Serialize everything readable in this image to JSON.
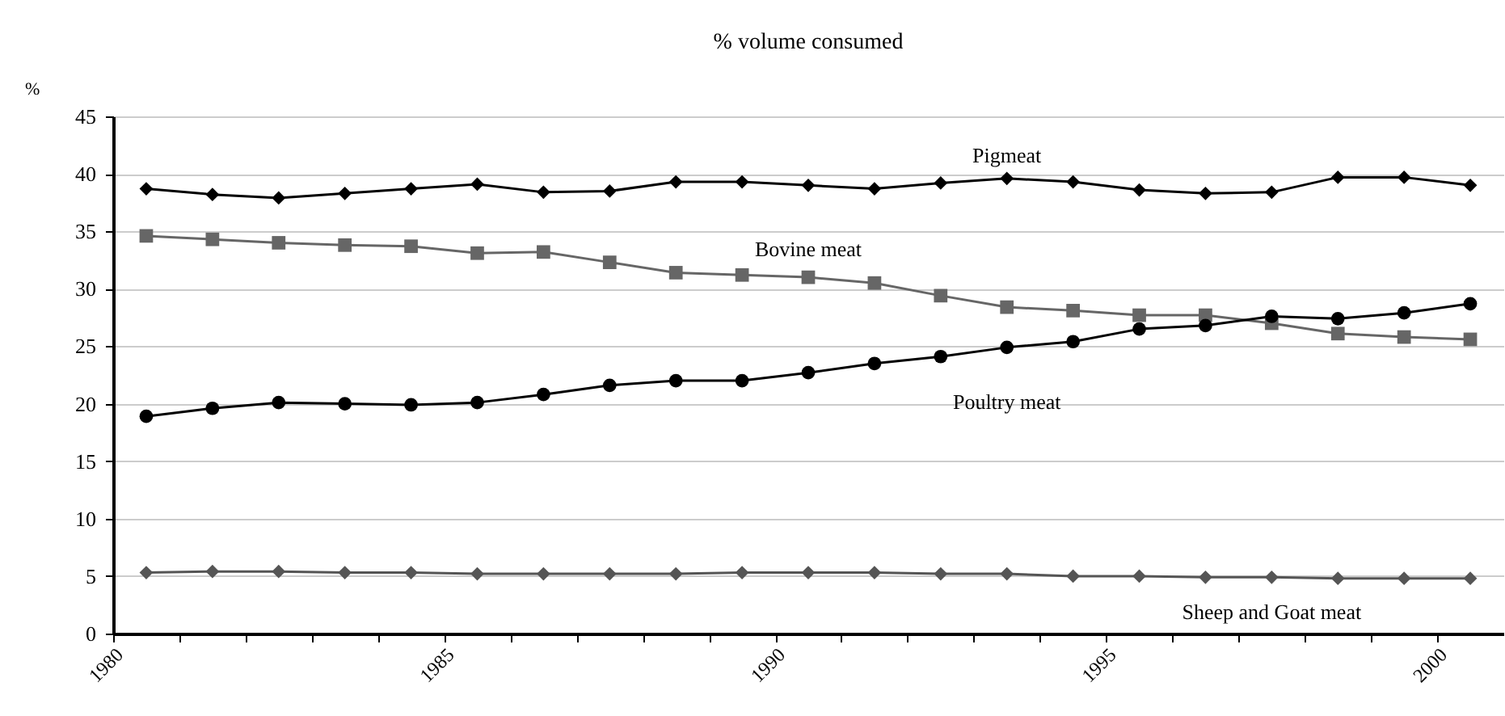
{
  "chart_data": {
    "type": "line",
    "title": "% volume consumed",
    "ylabel": "%",
    "x": [
      1980.5,
      1981.5,
      1982.5,
      1983.5,
      1984.5,
      1985.5,
      1986.5,
      1987.5,
      1988.5,
      1989.5,
      1990.5,
      1991.5,
      1992.5,
      1993.5,
      1994.5,
      1995.5,
      1996.5,
      1997.5,
      1998.5,
      1999.5,
      2000.5
    ],
    "series": [
      {
        "name": "Pigmeat",
        "color": "#000000",
        "marker": "diamond",
        "values": [
          38.7,
          38.2,
          37.9,
          38.3,
          38.7,
          39.1,
          38.4,
          38.5,
          39.3,
          39.3,
          39.0,
          38.7,
          39.2,
          39.6,
          39.3,
          38.6,
          38.3,
          38.4,
          39.7,
          39.7,
          39.0
        ]
      },
      {
        "name": "Bovine meat",
        "color": "#666666",
        "marker": "square",
        "values": [
          34.6,
          34.3,
          34.0,
          33.8,
          33.7,
          33.1,
          33.2,
          32.3,
          31.4,
          31.2,
          31.0,
          30.5,
          29.4,
          28.4,
          28.1,
          27.7,
          27.7,
          27.0,
          26.1,
          25.8,
          25.6
        ]
      },
      {
        "name": "Poultry meat",
        "color": "#000000",
        "marker": "circle",
        "values": [
          18.9,
          19.6,
          20.1,
          20.0,
          19.9,
          20.1,
          20.8,
          21.6,
          22.0,
          22.0,
          22.7,
          23.5,
          24.1,
          24.9,
          25.4,
          26.5,
          26.8,
          27.6,
          27.4,
          27.9,
          28.7
        ]
      },
      {
        "name": "Sheep and Goat meat",
        "color": "#555555",
        "marker": "diamond",
        "values": [
          5.3,
          5.4,
          5.4,
          5.3,
          5.3,
          5.2,
          5.2,
          5.2,
          5.2,
          5.3,
          5.3,
          5.3,
          5.2,
          5.2,
          5.0,
          5.0,
          4.9,
          4.9,
          4.8,
          4.8,
          4.8
        ]
      }
    ],
    "xlim": [
      1980,
      2001
    ],
    "xticks": [
      1980,
      {
        "value": 1981,
        "label": null
      },
      {
        "value": 1982,
        "label": null
      },
      {
        "value": 1983,
        "label": null
      },
      {
        "value": 1984,
        "label": null
      },
      1985,
      {
        "value": 1986,
        "label": null
      },
      {
        "value": 1987,
        "label": null
      },
      {
        "value": 1988,
        "label": null
      },
      {
        "value": 1989,
        "label": null
      },
      1990,
      {
        "value": 1991,
        "label": null
      },
      {
        "value": 1992,
        "label": null
      },
      {
        "value": 1993,
        "label": null
      },
      {
        "value": 1994,
        "label": null
      },
      1995,
      {
        "value": 1996,
        "label": null
      },
      {
        "value": 1997,
        "label": null
      },
      {
        "value": 1998,
        "label": null
      },
      {
        "value": 1999,
        "label": null
      },
      2000
    ],
    "ylim": [
      0,
      45
    ],
    "yticks": [
      0,
      5,
      10,
      15,
      20,
      25,
      30,
      35,
      40,
      45
    ],
    "grid": "y",
    "line_style": "solid"
  }
}
